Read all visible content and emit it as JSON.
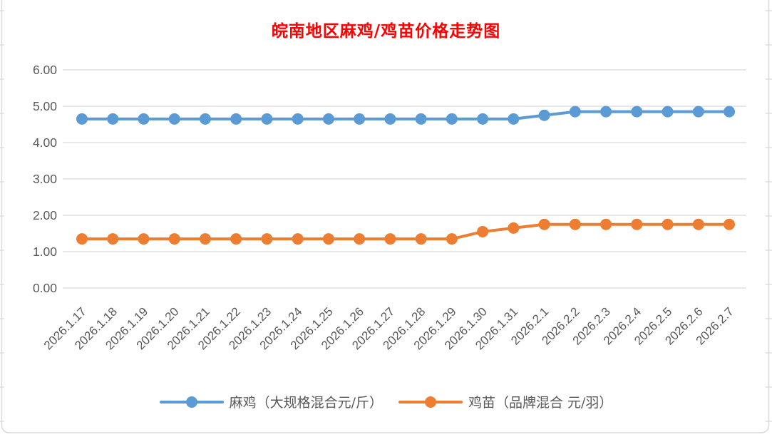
{
  "title": "皖南地区麻鸡/鸡苗价格走势图",
  "colors": {
    "title": "#FF0000",
    "axis_text": "#595959",
    "gridline": "#D9D9D9",
    "frame": "#D9D9D9",
    "series1": "#5B9BD5",
    "series2": "#ED7D31"
  },
  "chart_data": {
    "type": "line",
    "title": "皖南地区麻鸡/鸡苗价格走势图",
    "categories": [
      "2026.1.17",
      "2026.1.18",
      "2026.1.19",
      "2026.1.20",
      "2026.1.21",
      "2026.1.22",
      "2026.1.23",
      "2026.1.24",
      "2026.1.25",
      "2026.1.26",
      "2026.1.27",
      "2026.1.28",
      "2026.1.29",
      "2026.1.30",
      "2026.1.31",
      "2026.2.1",
      "2026.2.2",
      "2026.2.3",
      "2026.2.4",
      "2026.2.5",
      "2026.2.6",
      "2026.2.7"
    ],
    "series": [
      {
        "name": "麻鸡（大规格混合元/斤）",
        "color": "#5B9BD5",
        "values": [
          4.65,
          4.65,
          4.65,
          4.65,
          4.65,
          4.65,
          4.65,
          4.65,
          4.65,
          4.65,
          4.65,
          4.65,
          4.65,
          4.65,
          4.65,
          4.75,
          4.85,
          4.85,
          4.85,
          4.85,
          4.85,
          4.85
        ]
      },
      {
        "name": "鸡苗（品牌混合 元/羽）",
        "color": "#ED7D31",
        "values": [
          1.35,
          1.35,
          1.35,
          1.35,
          1.35,
          1.35,
          1.35,
          1.35,
          1.35,
          1.35,
          1.35,
          1.35,
          1.35,
          1.55,
          1.65,
          1.75,
          1.75,
          1.75,
          1.75,
          1.75,
          1.75,
          1.75
        ]
      }
    ],
    "ylim": [
      0,
      6
    ],
    "ytick_step": 1,
    "ytick_labels": [
      "0.00",
      "1.00",
      "2.00",
      "3.00",
      "4.00",
      "5.00",
      "6.00"
    ],
    "xlabel": "",
    "ylabel": "",
    "grid": true,
    "legend_position": "bottom"
  }
}
